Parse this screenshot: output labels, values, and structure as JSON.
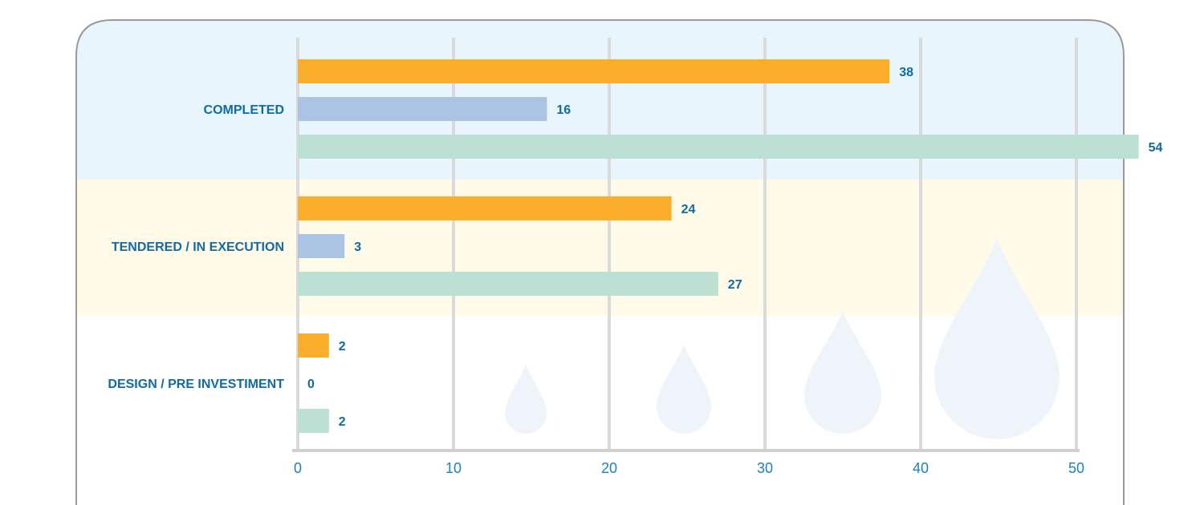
{
  "chart_data": {
    "type": "bar",
    "orientation": "horizontal",
    "categories": [
      "COMPLETED",
      "TENDERED / IN EXECUTION",
      "DESIGN / PRE INVESTIMENT"
    ],
    "series": [
      {
        "values": [
          38,
          24,
          2
        ],
        "color": "#fbad2c"
      },
      {
        "values": [
          16,
          3,
          0
        ],
        "color": "#abc4e3"
      },
      {
        "values": [
          54,
          27,
          2
        ],
        "color": "#bde0d4"
      }
    ],
    "value_labels": [
      [
        "38",
        "24",
        "2"
      ],
      [
        "16",
        "3",
        "0"
      ],
      [
        "54",
        "27",
        "2"
      ]
    ],
    "xlim": [
      0,
      50
    ],
    "xticks": [
      0,
      10,
      20,
      30,
      40,
      50
    ],
    "xtick_labels": [
      "0",
      "10",
      "20",
      "30",
      "40",
      "50"
    ],
    "grid": "vertical",
    "legend": "none",
    "band_colors": [
      "#e9f5fc",
      "#fffbe8",
      "#ffffff"
    ],
    "label_color": "#0f6aa6",
    "tick_color": "#1f7fc0"
  }
}
